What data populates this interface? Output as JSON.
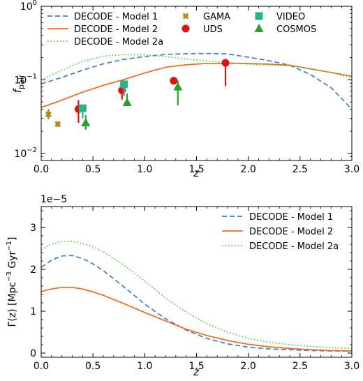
{
  "chart_data": [
    {
      "type": "line",
      "panel": "top",
      "xlabel": "z",
      "ylabel": "f",
      "ylabel_sub": "pair",
      "yscale": "log",
      "xlim": [
        0,
        3
      ],
      "ylim": [
        0.008,
        1
      ],
      "x_ticks": [
        0,
        0.5,
        1,
        1.5,
        2,
        2.5,
        3
      ],
      "x_tick_labels": [
        "0.0",
        "0.5",
        "1.0",
        "1.5",
        "2.0",
        "2.5",
        "3.0"
      ],
      "y_ticks": [
        0.01,
        0.1,
        1
      ],
      "y_tick_labels": [
        {
          "base": "10",
          "exp": "−2"
        },
        {
          "base": "10",
          "exp": "−1"
        },
        {
          "base": "10",
          "exp": "0"
        }
      ],
      "legend_position": "top",
      "series": [
        {
          "name": "DECODE - Model 1",
          "style": "dashed",
          "color": "#3a7fd0",
          "x": [
            0,
            0.2,
            0.4,
            0.6,
            0.8,
            1.0,
            1.2,
            1.4,
            1.6,
            1.8,
            2.0,
            2.2,
            2.4,
            2.6,
            2.8,
            3.0
          ],
          "y": [
            0.088,
            0.108,
            0.135,
            0.165,
            0.19,
            0.207,
            0.221,
            0.227,
            0.228,
            0.225,
            0.203,
            0.182,
            0.158,
            0.118,
            0.078,
            0.04
          ]
        },
        {
          "name": "DECODE - Model 2",
          "style": "solid",
          "color": "#f06a1a",
          "x": [
            0,
            0.2,
            0.4,
            0.6,
            0.8,
            1.0,
            1.2,
            1.4,
            1.6,
            1.8,
            2.0,
            2.2,
            2.4,
            2.6,
            2.8,
            3.0
          ],
          "y": [
            0.042,
            0.053,
            0.068,
            0.084,
            0.101,
            0.124,
            0.148,
            0.16,
            0.167,
            0.168,
            0.167,
            0.163,
            0.158,
            0.141,
            0.126,
            0.112
          ]
        },
        {
          "name": "DECODE - Model 2a",
          "style": "dotted",
          "color": "#46c82d",
          "x": [
            0,
            0.2,
            0.4,
            0.6,
            0.8,
            1.0,
            1.2,
            1.4,
            1.6,
            1.8,
            2.0,
            2.2,
            2.4,
            2.6,
            2.8,
            3.0
          ],
          "y": [
            0.1,
            0.135,
            0.178,
            0.21,
            0.22,
            0.218,
            0.208,
            0.192,
            0.18,
            0.172,
            0.163,
            0.158,
            0.155,
            0.142,
            0.125,
            0.106
          ]
        }
      ],
      "points": [
        {
          "name": "GAMA",
          "marker": "cross",
          "color": "#b08a1d",
          "data": [
            {
              "x": 0.07,
              "y": 0.034,
              "lo": 0.029,
              "hi": 0.04
            },
            {
              "x": 0.16,
              "y": 0.025,
              "lo": 0.023,
              "hi": 0.027
            }
          ]
        },
        {
          "name": "UDS",
          "marker": "circle",
          "color": "#e01010",
          "data": [
            {
              "x": 0.36,
              "y": 0.04,
              "lo": 0.026,
              "hi": 0.053
            },
            {
              "x": 0.78,
              "y": 0.072,
              "lo": 0.054,
              "hi": 0.09
            },
            {
              "x": 1.28,
              "y": 0.097,
              "lo": 0.088,
              "hi": 0.107
            },
            {
              "x": 1.78,
              "y": 0.17,
              "lo": 0.082,
              "hi": 0.17
            }
          ]
        },
        {
          "name": "VIDEO",
          "marker": "square",
          "color": "#25b590",
          "data": [
            {
              "x": 0.4,
              "y": 0.041,
              "lo": 0.03,
              "hi": 0.041
            },
            {
              "x": 0.8,
              "y": 0.087,
              "lo": 0.06,
              "hi": 0.087
            }
          ]
        },
        {
          "name": "COSMOS",
          "marker": "triangle",
          "color": "#2aa12a",
          "data": [
            {
              "x": 0.43,
              "y": 0.026,
              "lo": 0.021,
              "hi": 0.033
            },
            {
              "x": 0.83,
              "y": 0.049,
              "lo": 0.045,
              "hi": 0.065
            },
            {
              "x": 1.32,
              "y": 0.08,
              "lo": 0.045,
              "hi": 0.098
            }
          ]
        }
      ]
    },
    {
      "type": "line",
      "panel": "bottom",
      "xlabel": "z",
      "ylabel": "Γ(z) [Mpc",
      "ylabel_exp1": "−3",
      "ylabel_mid": " Gyr",
      "ylabel_exp2": "−1",
      "ylabel_end": "]",
      "y_multiplier": "1e−5",
      "xlim": [
        0,
        3
      ],
      "ylim": [
        -0.1,
        3.5
      ],
      "x_ticks": [
        0,
        0.5,
        1,
        1.5,
        2,
        2.5,
        3
      ],
      "x_tick_labels": [
        "0.0",
        "0.5",
        "1.0",
        "1.5",
        "2.0",
        "2.5",
        "3.0"
      ],
      "y_ticks": [
        0,
        1,
        2,
        3
      ],
      "y_tick_labels": [
        "0",
        "1",
        "2",
        "3"
      ],
      "legend_position": "top-right",
      "series": [
        {
          "name": "DECODE - Model 1",
          "style": "dashed",
          "color": "#3a7fd0",
          "x": [
            0,
            0.1,
            0.2,
            0.3,
            0.4,
            0.5,
            0.6,
            0.8,
            1.0,
            1.2,
            1.4,
            1.6,
            1.8,
            2.0,
            2.2,
            2.4,
            2.6,
            2.8,
            3.0
          ],
          "y": [
            2.05,
            2.22,
            2.32,
            2.33,
            2.26,
            2.13,
            1.97,
            1.58,
            1.17,
            0.82,
            0.55,
            0.35,
            0.22,
            0.14,
            0.1,
            0.08,
            0.06,
            0.05,
            0.05
          ]
        },
        {
          "name": "DECODE - Model 2",
          "style": "solid",
          "color": "#f06a1a",
          "x": [
            0,
            0.1,
            0.2,
            0.3,
            0.4,
            0.5,
            0.6,
            0.8,
            1.0,
            1.2,
            1.4,
            1.6,
            1.8,
            2.0,
            2.2,
            2.4,
            2.6,
            2.8,
            3.0
          ],
          "y": [
            1.47,
            1.53,
            1.57,
            1.57,
            1.53,
            1.46,
            1.38,
            1.18,
            0.97,
            0.77,
            0.57,
            0.42,
            0.3,
            0.21,
            0.15,
            0.11,
            0.08,
            0.06,
            0.05
          ]
        },
        {
          "name": "DECODE - Model 2a",
          "style": "dotted",
          "color": "#46c82d",
          "x": [
            0,
            0.1,
            0.2,
            0.3,
            0.4,
            0.5,
            0.6,
            0.8,
            1.0,
            1.2,
            1.4,
            1.6,
            1.8,
            2.0,
            2.2,
            2.4,
            2.6,
            2.8,
            3.0
          ],
          "y": [
            2.47,
            2.6,
            2.67,
            2.67,
            2.62,
            2.54,
            2.42,
            2.1,
            1.72,
            1.32,
            0.98,
            0.7,
            0.5,
            0.35,
            0.26,
            0.2,
            0.16,
            0.13,
            0.11
          ]
        }
      ]
    }
  ]
}
